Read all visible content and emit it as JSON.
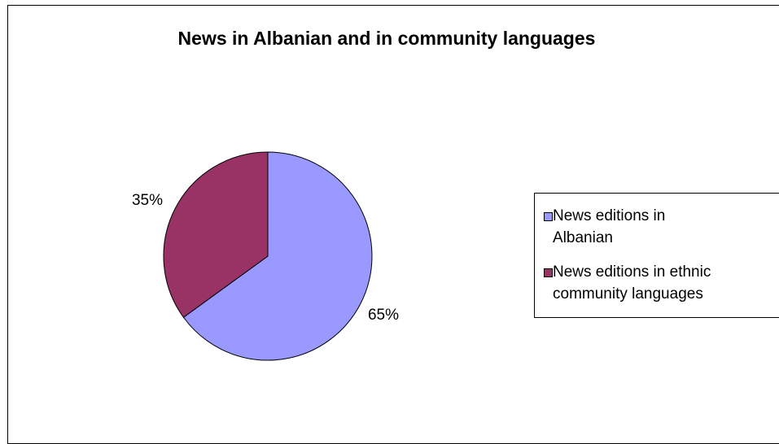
{
  "chart_data": {
    "type": "pie",
    "title": "News in Albanian and in community languages",
    "slices": [
      {
        "label": "News editions in Albanian",
        "value": 65,
        "display": "65%",
        "color": "#9999ff"
      },
      {
        "label": "News editions in ethnic community languages",
        "value": 35,
        "display": "35%",
        "color": "#993366"
      }
    ],
    "legend_position": "right",
    "legend": {
      "items": [
        {
          "lines": [
            "News editions in",
            "Albanian"
          ],
          "color": "#9999ff"
        },
        {
          "lines": [
            "News editions in ethnic",
            "community languages"
          ],
          "color": "#993366"
        }
      ]
    }
  }
}
